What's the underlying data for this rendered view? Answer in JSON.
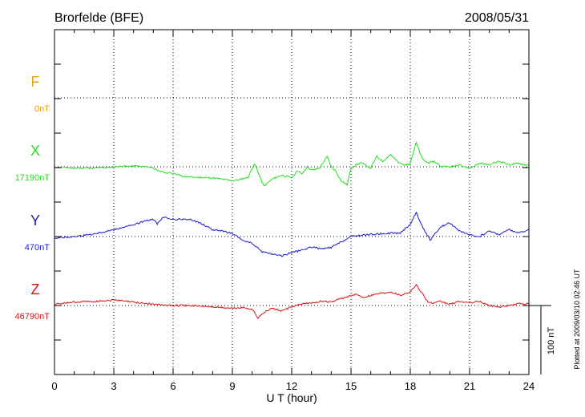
{
  "chart_data": {
    "type": "line",
    "title": "Brorfelde (BFE)",
    "date": "2008/05/31",
    "xlabel": "U T (hour)",
    "xlim": [
      0,
      24
    ],
    "xticks": [
      0,
      3,
      6,
      9,
      12,
      15,
      18,
      21,
      24
    ],
    "tick_labels": [
      "0",
      "3",
      "6",
      "9",
      "12",
      "15",
      "18",
      "21",
      "24"
    ],
    "grid": true,
    "scale_bar": "100 nT",
    "plotted_note": "Plotted at 2009/03/10 02:46 UT",
    "colors": {
      "F": "#f0a000",
      "X": "#22dd22",
      "Y": "#1a1acc",
      "Z": "#dd1111"
    },
    "series": [
      {
        "name": "F",
        "baseline_label": "0nT",
        "x": [],
        "values": []
      },
      {
        "name": "X",
        "baseline_label": "17190nT",
        "x": [
          0,
          1,
          2,
          3,
          4,
          4.8,
          5.5,
          6,
          6.5,
          7,
          8,
          9,
          9.3,
          9.8,
          10.1,
          10.2,
          10.4,
          10.6,
          11,
          11.5,
          12,
          12.3,
          12.5,
          12.8,
          13,
          13.4,
          13.8,
          14,
          14.2,
          14.5,
          14.8,
          15,
          15.2,
          15.5,
          16,
          16.3,
          16.6,
          17,
          17.4,
          17.8,
          18,
          18.3,
          18.6,
          18.9,
          19.2,
          19.6,
          20,
          20.5,
          21,
          21.5,
          22,
          22.5,
          23,
          23.5,
          24
        ],
        "values": [
          0,
          -2,
          -2,
          0,
          1,
          0,
          -8,
          -10,
          -14,
          -15,
          -16,
          -20,
          -19,
          -15,
          4,
          0,
          -15,
          -28,
          -18,
          -12,
          -16,
          -6,
          -10,
          0,
          -5,
          -2,
          15,
          0,
          -5,
          -20,
          -26,
          -2,
          2,
          6,
          -2,
          15,
          8,
          18,
          6,
          2,
          6,
          35,
          12,
          5,
          8,
          0,
          0,
          2,
          -2,
          5,
          3,
          8,
          3,
          5,
          2
        ]
      },
      {
        "name": "Y",
        "baseline_label": "470nT",
        "x": [
          0,
          1,
          2,
          3,
          3.5,
          4,
          4.5,
          5,
          5.2,
          5.5,
          6,
          6.5,
          7,
          7.5,
          8,
          8.5,
          9,
          9.5,
          10,
          10.5,
          11,
          11.5,
          12,
          12.5,
          13,
          13.5,
          14,
          14.5,
          15,
          15.5,
          16,
          17,
          17.5,
          18,
          18.3,
          18.6,
          19,
          19.2,
          19.6,
          20,
          20.5,
          21,
          21.5,
          22,
          22.5,
          23,
          23.5,
          24
        ],
        "values": [
          -2,
          0,
          4,
          10,
          14,
          17,
          22,
          25,
          18,
          28,
          25,
          25,
          24,
          18,
          10,
          8,
          4,
          -5,
          -10,
          -22,
          -25,
          -28,
          -23,
          -20,
          -15,
          -18,
          -16,
          -8,
          0,
          2,
          3,
          5,
          5,
          18,
          35,
          15,
          -5,
          2,
          15,
          20,
          8,
          2,
          0,
          8,
          3,
          10,
          5,
          10
        ]
      },
      {
        "name": "Z",
        "baseline_label": "46790nT",
        "x": [
          0,
          1,
          2,
          3,
          4,
          5,
          6,
          7,
          8,
          9,
          9.5,
          10,
          10.3,
          10.6,
          11,
          11.5,
          12,
          12.5,
          13,
          13.5,
          14,
          14.5,
          15,
          15.3,
          15.6,
          16,
          16.5,
          17,
          17.5,
          18,
          18.3,
          18.6,
          18.9,
          19.2,
          19.5,
          20,
          20.5,
          21,
          21.5,
          22,
          22.5,
          23,
          23.5,
          24
        ],
        "values": [
          2,
          5,
          6,
          8,
          5,
          2,
          0,
          0,
          -2,
          -4,
          -3,
          -5,
          -18,
          -10,
          -4,
          -8,
          -2,
          2,
          4,
          6,
          5,
          10,
          14,
          16,
          12,
          15,
          18,
          20,
          15,
          20,
          30,
          18,
          5,
          3,
          6,
          2,
          6,
          4,
          6,
          0,
          -2,
          0,
          3,
          2
        ]
      }
    ]
  }
}
